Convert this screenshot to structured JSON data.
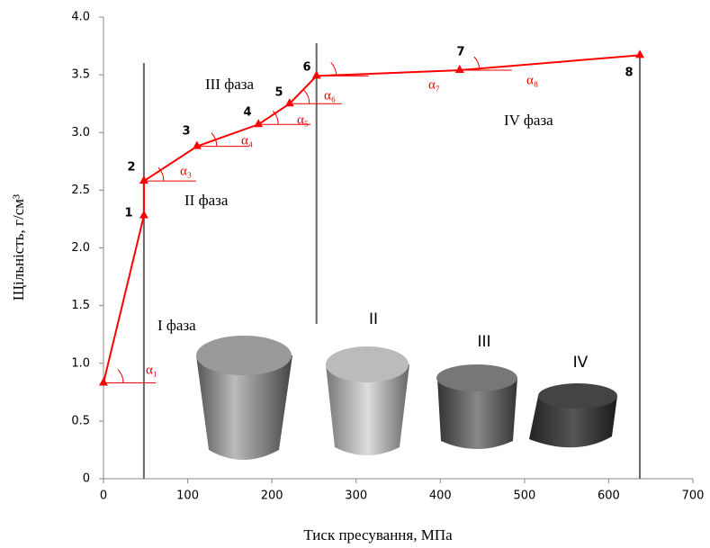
{
  "chart_data": {
    "type": "line",
    "x": [
      0,
      48,
      48,
      111,
      184,
      221,
      253,
      423,
      637
    ],
    "series": [
      {
        "color": "#ff0000",
        "values": [
          0.83,
          2.28,
          2.58,
          2.88,
          3.07,
          3.25,
          3.49,
          3.54,
          3.67
        ]
      }
    ],
    "point_labels": [
      null,
      "1",
      "2",
      "3",
      "4",
      "5",
      "6",
      "7",
      "8"
    ],
    "xlim": [
      0,
      700
    ],
    "xticks": [
      0,
      100,
      200,
      300,
      400,
      500,
      600,
      700
    ],
    "ylim": [
      0,
      4.0
    ],
    "yticks": [
      0,
      0.5,
      {
        "value": 1.0,
        "label": "1.0"
      },
      1.5,
      {
        "value": 2.0,
        "label": "2.0"
      },
      2.5,
      {
        "value": 3.0,
        "label": "3.0"
      },
      3.5,
      {
        "value": 4.0,
        "label": "4.0"
      }
    ],
    "xlabel": "Тиск пресування, МПа",
    "ylabel": "Щільність, г/см³",
    "vlines": [
      48,
      253,
      637
    ],
    "phase_labels": [
      "I фаза",
      "II фаза",
      "III фаза",
      "IV фаза"
    ],
    "angle_labels": [
      "α₁",
      "α₃",
      "α₄",
      "α₅",
      "α₆",
      "α₇",
      "α₈"
    ],
    "photo_labels": [
      "II",
      "III",
      "IV"
    ]
  }
}
